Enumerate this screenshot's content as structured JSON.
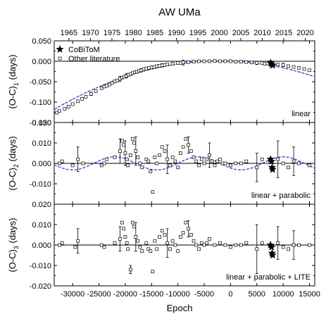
{
  "chart_data": {
    "type": "scatter",
    "title": "AW UMa",
    "xlabel": "Epoch",
    "top_axis_label": "",
    "x_range": [
      -33500,
      16000
    ],
    "x_ticks": [
      -30000,
      -25000,
      -20000,
      -15000,
      -10000,
      -5000,
      0,
      5000,
      10000,
      15000
    ],
    "x_tick_labels": [
      "-30000",
      "-25000",
      "-20000",
      "-15000",
      "-10000",
      "-5000",
      "0",
      "5000",
      "10000",
      "15000"
    ],
    "top_ticks_years": [
      1965,
      1970,
      1975,
      1980,
      1985,
      1990,
      1995,
      2000,
      2005,
      2010,
      2015,
      2020
    ],
    "top_tick_labels": [
      "1965",
      "1970",
      "1975",
      "1980",
      "1985",
      "1990",
      "1995",
      "2000",
      "2005",
      "2010",
      "2015",
      "2020"
    ],
    "legend": [
      {
        "label": "CoBiToM",
        "marker": "star"
      },
      {
        "label": "Other literature",
        "marker": "open-square"
      }
    ],
    "panels": [
      {
        "ylabel": "(O-C)1 (days)",
        "ylabel_main": "(O-C)",
        "ylabel_sub": "1",
        "ylabel_unit": "(days)",
        "label": "linear",
        "ylim": [
          -0.15,
          0.05
        ],
        "y_ticks": [
          -0.15,
          -0.1,
          -0.05,
          0.0,
          0.05
        ],
        "y_tick_labels": [
          "-0.150",
          "-0.100",
          "-0.050",
          "0.000",
          "0.050"
        ],
        "fit_curve": {
          "type": "parabola",
          "vertex_x": -2000,
          "vertex_y": 0.001,
          "coef": 1.2e-10,
          "color": "#3b3bd6",
          "second_color": "#cc3344"
        },
        "other": [
          [
            -33000,
            -0.126
          ],
          [
            -32500,
            -0.122
          ],
          [
            -31500,
            -0.116
          ],
          [
            -30800,
            -0.111
          ],
          [
            -30000,
            -0.105
          ],
          [
            -29000,
            -0.098
          ],
          [
            -28200,
            -0.092
          ],
          [
            -27500,
            -0.087
          ],
          [
            -26500,
            -0.08
          ],
          [
            -25600,
            -0.073
          ],
          [
            -24500,
            -0.066
          ],
          [
            -24000,
            -0.062
          ],
          [
            -23500,
            -0.06
          ],
          [
            -23000,
            -0.057
          ],
          [
            -22500,
            -0.053
          ],
          [
            -22000,
            -0.049
          ],
          [
            -21500,
            -0.047
          ],
          [
            -21000,
            -0.043
          ],
          [
            -20600,
            -0.04
          ],
          [
            -20200,
            -0.038
          ],
          [
            -19800,
            -0.036
          ],
          [
            -19400,
            -0.033
          ],
          [
            -19000,
            -0.032
          ],
          [
            -18600,
            -0.029
          ],
          [
            -18200,
            -0.027
          ],
          [
            -17800,
            -0.026
          ],
          [
            -17400,
            -0.024
          ],
          [
            -17000,
            -0.022
          ],
          [
            -16500,
            -0.02
          ],
          [
            -16000,
            -0.018
          ],
          [
            -15500,
            -0.016
          ],
          [
            -15000,
            -0.015
          ],
          [
            -14500,
            -0.014
          ],
          [
            -14000,
            -0.012
          ],
          [
            -13500,
            -0.011
          ],
          [
            -13000,
            -0.01
          ],
          [
            -12500,
            -0.009
          ],
          [
            -12000,
            -0.008
          ],
          [
            -11000,
            -0.006
          ],
          [
            -10000,
            -0.004
          ],
          [
            -9500,
            -0.004
          ],
          [
            -9000,
            -0.003
          ],
          [
            -8000,
            -0.002
          ],
          [
            -7000,
            -0.001
          ],
          [
            -6000,
            0.0
          ],
          [
            -5000,
            0.0
          ],
          [
            -4000,
            0.0
          ],
          [
            -3000,
            0.001
          ],
          [
            -2000,
            0.0
          ],
          [
            -1000,
            0.0
          ],
          [
            0,
            0.0
          ],
          [
            1000,
            -0.001
          ],
          [
            2000,
            -0.001
          ],
          [
            3000,
            -0.002
          ],
          [
            4000,
            -0.003
          ],
          [
            5000,
            -0.004
          ],
          [
            6000,
            -0.004
          ],
          [
            6500,
            -0.006
          ],
          [
            9000,
            -0.008
          ],
          [
            10000,
            -0.009
          ],
          [
            11000,
            -0.012
          ],
          [
            12000,
            -0.014
          ],
          [
            13000,
            -0.016
          ],
          [
            14000,
            -0.019
          ],
          [
            15000,
            -0.022
          ]
        ],
        "cobitom": [
          [
            7600,
            -0.004
          ],
          [
            7800,
            -0.007
          ],
          [
            8000,
            -0.01
          ]
        ],
        "error_bars": [
          [
            -26500,
            -0.08,
            0.004
          ],
          [
            -21000,
            -0.043,
            0.006
          ],
          [
            -19800,
            -0.036,
            0.005
          ],
          [
            -17000,
            -0.022,
            0.004
          ],
          [
            -13000,
            -0.01,
            0.004
          ],
          [
            -9000,
            -0.003,
            0.006
          ],
          [
            5000,
            -0.004,
            0.004
          ],
          [
            10000,
            -0.009,
            0.004
          ]
        ]
      },
      {
        "ylabel": "(O-C)2 (days)",
        "ylabel_main": "(O-C)",
        "ylabel_sub": "2",
        "ylabel_unit": "(days)",
        "label": "linear + parabolic",
        "ylim": [
          -0.02,
          0.02
        ],
        "y_ticks": [
          -0.02,
          -0.01,
          0.0,
          0.01,
          0.02
        ],
        "y_tick_labels": [
          "",
          "-0.010",
          "0.000",
          "0.010",
          "0.020"
        ],
        "fit_curve": {
          "type": "sine",
          "amplitude": 0.0032,
          "period": 16000,
          "phase_x": -26000,
          "color": "#3b3bd6"
        },
        "other": [
          [
            -32500,
            0.0
          ],
          [
            -32000,
            0.001
          ],
          [
            -30000,
            -0.001
          ],
          [
            -29000,
            0.002
          ],
          [
            -28000,
            0.0
          ],
          [
            -24500,
            -0.001
          ],
          [
            -24000,
            0.0
          ],
          [
            -23500,
            0.002
          ],
          [
            -22000,
            0.003
          ],
          [
            -21000,
            0.006
          ],
          [
            -20600,
            0.011
          ],
          [
            -20300,
            0.009
          ],
          [
            -20000,
            0.005
          ],
          [
            -19700,
            0.002
          ],
          [
            -19500,
            -0.001
          ],
          [
            -19000,
            0.004
          ],
          [
            -18600,
            0.012
          ],
          [
            -18300,
            0.01
          ],
          [
            -18000,
            0.006
          ],
          [
            -17600,
            0.003
          ],
          [
            -17200,
            0.0
          ],
          [
            -16800,
            -0.002
          ],
          [
            -16000,
            0.002
          ],
          [
            -15600,
            0.001
          ],
          [
            -15200,
            -0.004
          ],
          [
            -14800,
            -0.014
          ],
          [
            -14400,
            0.003
          ],
          [
            -14000,
            0.0
          ],
          [
            -13500,
            0.004
          ],
          [
            -13000,
            0.008
          ],
          [
            -12500,
            0.006
          ],
          [
            -12000,
            0.002
          ],
          [
            -11500,
            -0.001
          ],
          [
            -11000,
            0.003
          ],
          [
            -10500,
            0.001
          ],
          [
            -10000,
            -0.002
          ],
          [
            -9500,
            0.005
          ],
          [
            -9000,
            0.008
          ],
          [
            -8500,
            0.012
          ],
          [
            -8000,
            0.009
          ],
          [
            -7500,
            0.006
          ],
          [
            -7000,
            0.003
          ],
          [
            -6500,
            0.001
          ],
          [
            -6000,
            -0.001
          ],
          [
            -5500,
            0.002
          ],
          [
            -5000,
            0.0
          ],
          [
            -4500,
            0.002
          ],
          [
            -4000,
            0.004
          ],
          [
            -3500,
            0.001
          ],
          [
            -3000,
            -0.001
          ],
          [
            -2500,
            0.001
          ],
          [
            -2000,
            0.002
          ],
          [
            -1500,
            0.0
          ],
          [
            -1000,
            0.0
          ],
          [
            0,
            -0.001
          ],
          [
            1000,
            0.0
          ],
          [
            2000,
            0.0
          ],
          [
            3000,
            0.001
          ],
          [
            5000,
            -0.002
          ],
          [
            6000,
            0.002
          ],
          [
            9000,
            0.002
          ],
          [
            10000,
            0.0
          ],
          [
            11000,
            -0.002
          ],
          [
            12000,
            0.001
          ],
          [
            13000,
            0.0
          ],
          [
            15000,
            -0.001
          ]
        ],
        "cobitom": [
          [
            7600,
            0.002
          ],
          [
            7800,
            0.001
          ],
          [
            7900,
            -0.002
          ],
          [
            8000,
            -0.003
          ]
        ],
        "error_bars": [
          [
            -29000,
            0.002,
            0.006
          ],
          [
            -21000,
            0.006,
            0.006
          ],
          [
            -20000,
            0.005,
            0.006
          ],
          [
            -18000,
            0.006,
            0.007
          ],
          [
            -12000,
            0.002,
            0.007
          ],
          [
            -8000,
            0.009,
            0.004
          ],
          [
            -4000,
            0.004,
            0.006
          ],
          [
            5000,
            -0.002,
            0.007
          ],
          [
            9000,
            0.002,
            0.009
          ],
          [
            12000,
            0.001,
            0.007
          ]
        ]
      },
      {
        "ylabel": "(O-C)3 (days)",
        "ylabel_main": "(O-C)",
        "ylabel_sub": "3",
        "ylabel_unit": "(days)",
        "label": "linear + parabolic + LITE",
        "ylim": [
          -0.02,
          0.02
        ],
        "y_ticks": [
          -0.02,
          -0.01,
          0.0,
          0.01,
          0.02
        ],
        "y_tick_labels": [
          "-0.020",
          "-0.010",
          "0.000",
          "0.010",
          "0.020"
        ],
        "fit_curve": null,
        "other": [
          [
            -32500,
            0.0
          ],
          [
            -32000,
            0.001
          ],
          [
            -29500,
            -0.001
          ],
          [
            -29000,
            0.002
          ],
          [
            -24500,
            0.0
          ],
          [
            -24000,
            -0.001
          ],
          [
            -22000,
            0.001
          ],
          [
            -21000,
            0.003
          ],
          [
            -20600,
            0.011
          ],
          [
            -20300,
            0.008
          ],
          [
            -20000,
            0.004
          ],
          [
            -19700,
            0.001
          ],
          [
            -19500,
            -0.002
          ],
          [
            -19000,
            -0.012
          ],
          [
            -18600,
            0.011
          ],
          [
            -18300,
            0.009
          ],
          [
            -18000,
            0.004
          ],
          [
            -17600,
            0.002
          ],
          [
            -17200,
            -0.001
          ],
          [
            -16800,
            -0.003
          ],
          [
            -16000,
            0.001
          ],
          [
            -15600,
            -0.002
          ],
          [
            -15200,
            -0.003
          ],
          [
            -14800,
            -0.013
          ],
          [
            -14400,
            0.002
          ],
          [
            -14000,
            -0.002
          ],
          [
            -13500,
            0.004
          ],
          [
            -13000,
            0.007
          ],
          [
            -12500,
            0.005
          ],
          [
            -12000,
            0.001
          ],
          [
            -11500,
            -0.002
          ],
          [
            -11000,
            0.002
          ],
          [
            -10500,
            0.0
          ],
          [
            -10000,
            -0.003
          ],
          [
            -9500,
            0.004
          ],
          [
            -9000,
            0.006
          ],
          [
            -8500,
            0.011
          ],
          [
            -8000,
            0.008
          ],
          [
            -7500,
            0.005
          ],
          [
            -7000,
            0.002
          ],
          [
            -6500,
            0.0
          ],
          [
            -6000,
            -0.002
          ],
          [
            -5500,
            0.001
          ],
          [
            -5000,
            0.0
          ],
          [
            -4500,
            0.001
          ],
          [
            -4000,
            0.003
          ],
          [
            -3000,
            0.0
          ],
          [
            -2000,
            0.001
          ],
          [
            -1000,
            0.0
          ],
          [
            0,
            -0.001
          ],
          [
            1000,
            0.0
          ],
          [
            2000,
            0.0
          ],
          [
            3000,
            0.001
          ],
          [
            5000,
            -0.002
          ],
          [
            6000,
            0.001
          ],
          [
            9000,
            0.001
          ],
          [
            10000,
            -0.001
          ],
          [
            11000,
            -0.002
          ],
          [
            12000,
            0.0
          ],
          [
            13000,
            0.0
          ],
          [
            15000,
            0.0
          ]
        ],
        "cobitom": [
          [
            7600,
            0.0
          ],
          [
            7800,
            -0.001
          ],
          [
            7900,
            -0.004
          ],
          [
            8000,
            -0.005
          ]
        ],
        "error_bars": [
          [
            -29000,
            0.002,
            0.006
          ],
          [
            -21000,
            0.003,
            0.006
          ],
          [
            -19000,
            -0.012,
            0.002
          ],
          [
            -18000,
            0.004,
            0.007
          ],
          [
            -12000,
            0.001,
            0.007
          ],
          [
            -8000,
            0.008,
            0.004
          ],
          [
            5000,
            -0.002,
            0.012
          ],
          [
            9000,
            0.001,
            0.008
          ],
          [
            12000,
            0.0,
            0.007
          ]
        ]
      }
    ],
    "grid": false,
    "legend_position": "top-left",
    "colors": {
      "fit_line": "#3b3bd6",
      "fit_line_alt": "#cc3344",
      "points": "#000000",
      "zero_line": "#000000"
    }
  }
}
